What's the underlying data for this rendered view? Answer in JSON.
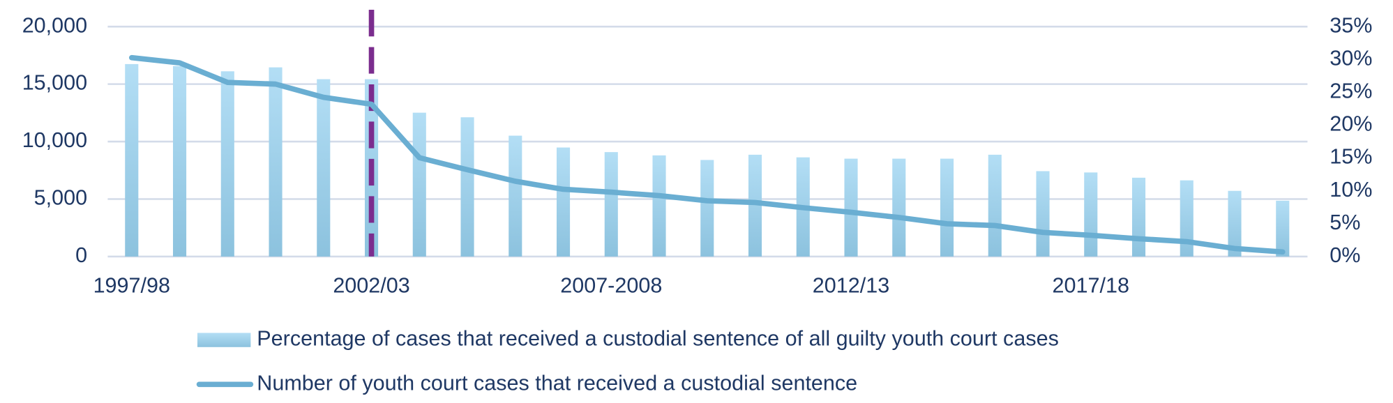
{
  "chart_data": {
    "type": "bar_line",
    "categories": [
      "1997/98",
      null,
      null,
      null,
      null,
      "2002/03",
      null,
      null,
      null,
      null,
      "2007-2008",
      null,
      null,
      null,
      null,
      "2012/13",
      null,
      null,
      null,
      null,
      "2017/18",
      null,
      null,
      null,
      null
    ],
    "series": [
      {
        "name": "Percentage of cases that received a custodial sentence of all guilty youth court cases",
        "type": "bar",
        "axis": "y2",
        "color": "#a6d5ef",
        "values": [
          29.3,
          29.0,
          28.2,
          28.8,
          27.0,
          27.0,
          21.9,
          21.2,
          18.4,
          16.6,
          15.9,
          15.4,
          14.7,
          15.5,
          15.1,
          14.9,
          14.9,
          14.9,
          15.5,
          13.0,
          12.8,
          12.0,
          11.6,
          10.0,
          8.5
        ]
      },
      {
        "name": "Number of youth court cases that received a custodial sentence",
        "type": "line",
        "axis": "y",
        "color": "#6aaed2",
        "values": [
          17300,
          16850,
          15150,
          15000,
          13850,
          13250,
          8600,
          7550,
          6550,
          5850,
          5600,
          5300,
          4850,
          4700,
          4250,
          3850,
          3400,
          2850,
          2700,
          2100,
          1850,
          1550,
          1300,
          700,
          400
        ]
      }
    ],
    "ylim": [
      0,
      20000
    ],
    "yticks": [
      0,
      {
        "value": 5000,
        "label": "5,000"
      },
      {
        "value": 10000,
        "label": "10,000"
      },
      {
        "value": 15000,
        "label": "15,000"
      },
      {
        "value": 20000,
        "label": "20,000"
      }
    ],
    "y2lim": [
      0,
      35
    ],
    "y2ticks": [
      {
        "value": 0,
        "label": "0%"
      },
      {
        "value": 5,
        "label": "5%"
      },
      {
        "value": 10,
        "label": "10%"
      },
      {
        "value": 15,
        "label": "15%"
      },
      {
        "value": 20,
        "label": "20%"
      },
      {
        "value": 25,
        "label": "25%"
      },
      {
        "value": 30,
        "label": "30%"
      },
      {
        "value": 35,
        "label": "35%"
      }
    ],
    "grid": true
  }
}
